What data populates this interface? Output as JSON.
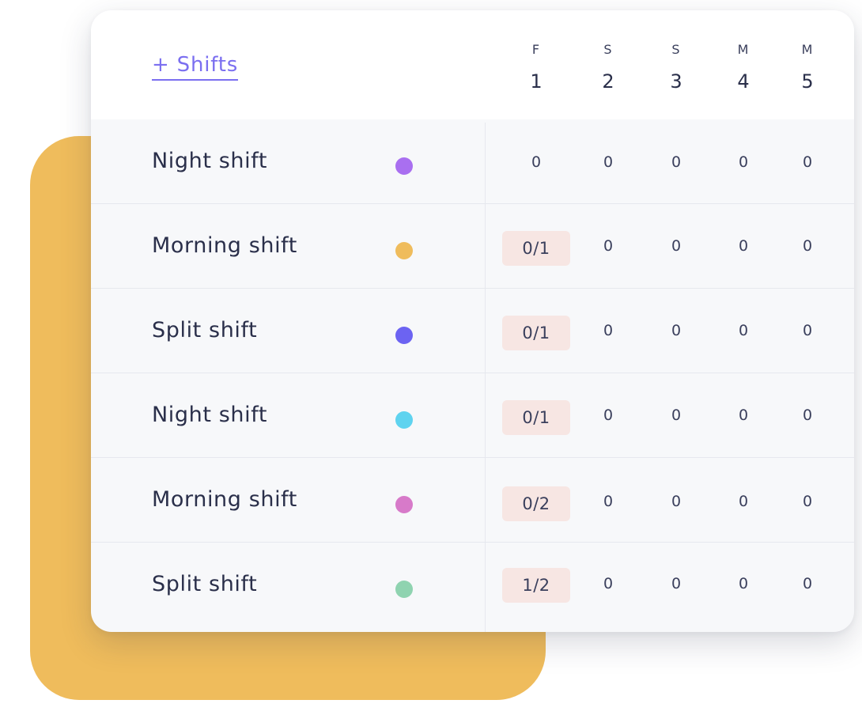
{
  "header": {
    "add_shifts_label": "+ Shifts",
    "days": [
      {
        "letter": "F",
        "number": "1"
      },
      {
        "letter": "S",
        "number": "2"
      },
      {
        "letter": "S",
        "number": "3"
      },
      {
        "letter": "M",
        "number": "4"
      },
      {
        "letter": "M",
        "number": "5"
      }
    ]
  },
  "rows": [
    {
      "name": "Night shift",
      "color": "#a96ff0",
      "cells": [
        "0",
        "0",
        "0",
        "0",
        "0"
      ],
      "chip": false
    },
    {
      "name": "Morning shift",
      "color": "#efbc5c",
      "cells": [
        "0/1",
        "0",
        "0",
        "0",
        "0"
      ],
      "chip": true
    },
    {
      "name": "Split shift",
      "color": "#6c63f2",
      "cells": [
        "0/1",
        "0",
        "0",
        "0",
        "0"
      ],
      "chip": true
    },
    {
      "name": "Night shift",
      "color": "#5fd3ef",
      "cells": [
        "0/1",
        "0",
        "0",
        "0",
        "0"
      ],
      "chip": true
    },
    {
      "name": "Morning shift",
      "color": "#d77ac9",
      "cells": [
        "0/2",
        "0",
        "0",
        "0",
        "0"
      ],
      "chip": true
    },
    {
      "name": "Split shift",
      "color": "#8fd3b0",
      "cells": [
        "1/2",
        "0",
        "0",
        "0",
        "0"
      ],
      "chip": true
    }
  ]
}
